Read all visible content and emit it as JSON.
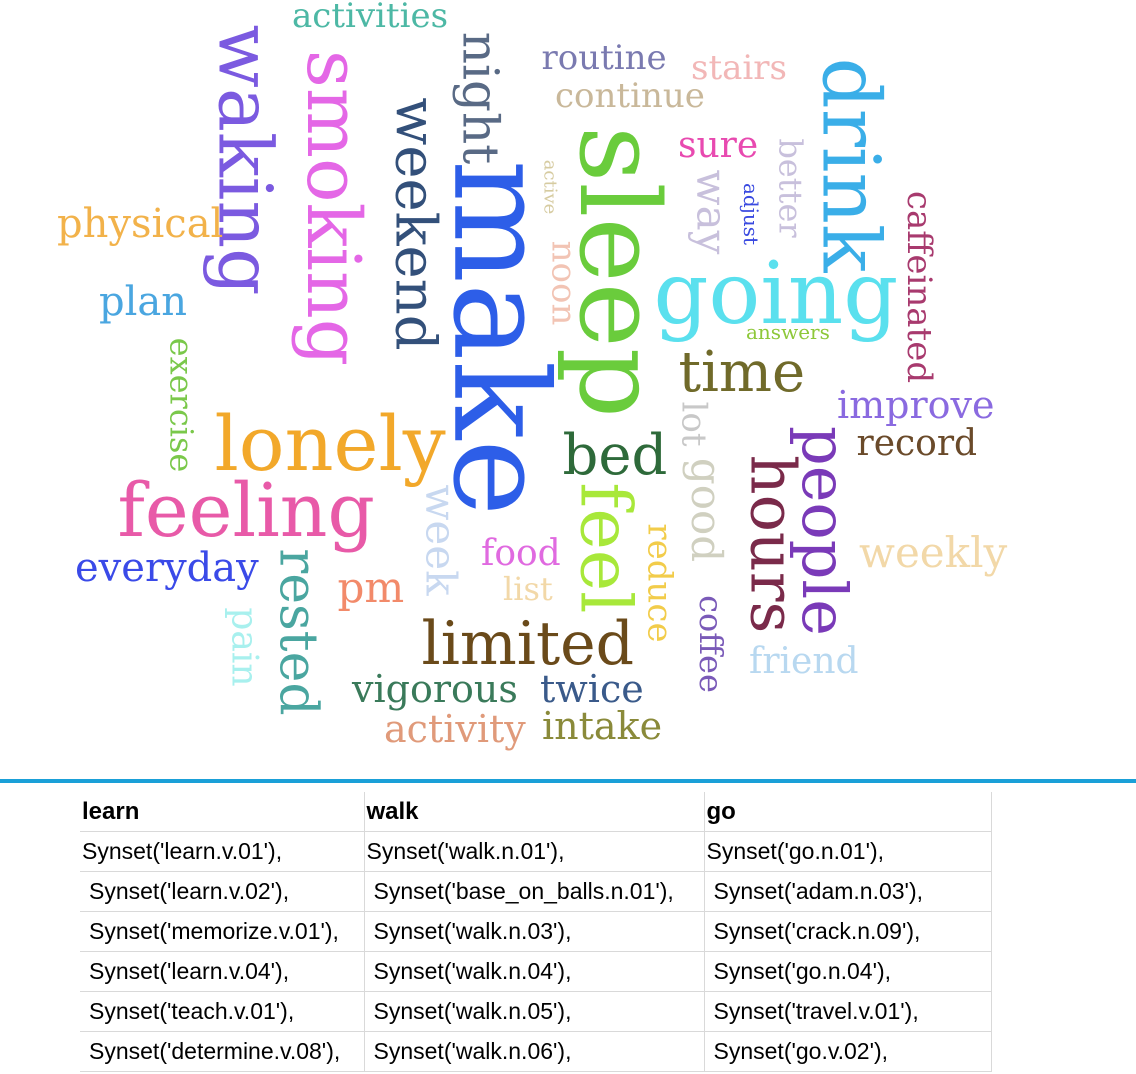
{
  "word_cloud": {
    "words": [
      {
        "text": "activities",
        "color": "#4db8a5",
        "weight": 34,
        "rot": 0
      },
      {
        "text": "waking",
        "color": "#7b5ae0",
        "weight": 74,
        "rot": 90
      },
      {
        "text": "smoking",
        "color": "#e467e6",
        "weight": 74,
        "rot": 90
      },
      {
        "text": "night",
        "color": "#596a85",
        "weight": 50,
        "rot": 90
      },
      {
        "text": "weekend",
        "color": "#33507a",
        "weight": 56,
        "rot": 90
      },
      {
        "text": "make",
        "color": "#2d5ee8",
        "weight": 130,
        "rot": 90
      },
      {
        "text": "routine",
        "color": "#7a7ab0",
        "weight": 34,
        "rot": 0
      },
      {
        "text": "stairs",
        "color": "#f2b7b7",
        "weight": 34,
        "rot": 0
      },
      {
        "text": "continue",
        "color": "#c9b89a",
        "weight": 34,
        "rot": 0
      },
      {
        "text": "sleep",
        "color": "#6acc3c",
        "weight": 110,
        "rot": 90
      },
      {
        "text": "drink",
        "color": "#3aaee8",
        "weight": 80,
        "rot": 90
      },
      {
        "text": "sure",
        "color": "#e84ab0",
        "weight": 36,
        "rot": 0
      },
      {
        "text": "better",
        "color": "#c8c0dc",
        "weight": 32,
        "rot": 90
      },
      {
        "text": "way",
        "color": "#c8c0dc",
        "weight": 42,
        "rot": 90
      },
      {
        "text": "adjust",
        "color": "#3a4ae0",
        "weight": 20,
        "rot": 90
      },
      {
        "text": "active",
        "color": "#d6cba0",
        "weight": 18,
        "rot": 90
      },
      {
        "text": "noon",
        "color": "#f2c4b4",
        "weight": 34,
        "rot": 90
      },
      {
        "text": "caffeinated",
        "color": "#a83a6e",
        "weight": 34,
        "rot": 90
      },
      {
        "text": "physical",
        "color": "#f2b24a",
        "weight": 40,
        "rot": 0
      },
      {
        "text": "going",
        "color": "#5ae0ee",
        "weight": 86,
        "rot": 0
      },
      {
        "text": "plan",
        "color": "#4aa6e0",
        "weight": 40,
        "rot": 0
      },
      {
        "text": "answers",
        "color": "#8ec83a",
        "weight": 20,
        "rot": 0
      },
      {
        "text": "exercise",
        "color": "#7ac84a",
        "weight": 32,
        "rot": 90
      },
      {
        "text": "time",
        "color": "#706a2a",
        "weight": 56,
        "rot": 0
      },
      {
        "text": "improve",
        "color": "#8a6ae0",
        "weight": 38,
        "rot": 0
      },
      {
        "text": "lonely",
        "color": "#f2a82a",
        "weight": 76,
        "rot": 0
      },
      {
        "text": "record",
        "color": "#6a4a2a",
        "weight": 36,
        "rot": 0
      },
      {
        "text": "bed",
        "color": "#2e6a3a",
        "weight": 56,
        "rot": 0
      },
      {
        "text": "lot",
        "color": "#c8c8c8",
        "weight": 34,
        "rot": 90
      },
      {
        "text": "good",
        "color": "#d0d0c0",
        "weight": 42,
        "rot": 90
      },
      {
        "text": "people",
        "color": "#7a3ab8",
        "weight": 62,
        "rot": 90
      },
      {
        "text": "hours",
        "color": "#7a2a4a",
        "weight": 62,
        "rot": 90
      },
      {
        "text": "feeling",
        "color": "#e85aa8",
        "weight": 74,
        "rot": 0
      },
      {
        "text": "feel",
        "color": "#a8e83a",
        "weight": 70,
        "rot": 90
      },
      {
        "text": "week",
        "color": "#c8d8f0",
        "weight": 42,
        "rot": 90
      },
      {
        "text": "reduce",
        "color": "#f2cc4a",
        "weight": 34,
        "rot": 90
      },
      {
        "text": "weekly",
        "color": "#f2d8a8",
        "weight": 42,
        "rot": 0
      },
      {
        "text": "everyday",
        "color": "#3a4ae8",
        "weight": 40,
        "rot": 0
      },
      {
        "text": "rested",
        "color": "#4aa6a0",
        "weight": 52,
        "rot": 90
      },
      {
        "text": "food",
        "color": "#e06ae0",
        "weight": 36,
        "rot": 0
      },
      {
        "text": "pm",
        "color": "#f28a6a",
        "weight": 42,
        "rot": 0
      },
      {
        "text": "list",
        "color": "#f2d8a8",
        "weight": 32,
        "rot": 0
      },
      {
        "text": "coffee",
        "color": "#7a5ab8",
        "weight": 32,
        "rot": 90
      },
      {
        "text": "pain",
        "color": "#a8f0ee",
        "weight": 36,
        "rot": 90
      },
      {
        "text": "limited",
        "color": "#6a4a1a",
        "weight": 60,
        "rot": 0
      },
      {
        "text": "friend",
        "color": "#b8d8f0",
        "weight": 36,
        "rot": 0
      },
      {
        "text": "vigorous",
        "color": "#3a7a5a",
        "weight": 38,
        "rot": 0
      },
      {
        "text": "twice",
        "color": "#3a5a8a",
        "weight": 38,
        "rot": 0
      },
      {
        "text": "activity",
        "color": "#e09a7a",
        "weight": 38,
        "rot": 0
      },
      {
        "text": "intake",
        "color": "#8a8a3a",
        "weight": 38,
        "rot": 0
      }
    ]
  },
  "divider": {
    "color": "#1aa0d8"
  },
  "table": {
    "headers": [
      "learn",
      "walk",
      "go"
    ],
    "rows": [
      [
        "Synset('learn.v.01'),",
        "Synset('walk.n.01'),",
        "Synset('go.n.01'),"
      ],
      [
        " Synset('learn.v.02'),",
        " Synset('base_on_balls.n.01'),",
        " Synset('adam.n.03'),"
      ],
      [
        " Synset('memorize.v.01'),",
        " Synset('walk.n.03'),",
        " Synset('crack.n.09'),"
      ],
      [
        " Synset('learn.v.04'),",
        " Synset('walk.n.04'),",
        " Synset('go.n.04'),"
      ],
      [
        " Synset('teach.v.01'),",
        " Synset('walk.n.05'),",
        " Synset('travel.v.01'),"
      ],
      [
        " Synset('determine.v.08'),",
        " Synset('walk.n.06'),",
        " Synset('go.v.02'),"
      ]
    ]
  }
}
